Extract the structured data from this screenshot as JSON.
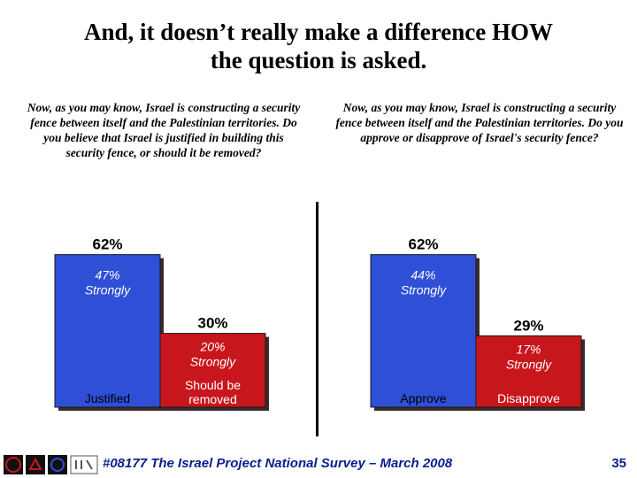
{
  "title": {
    "line1": "And, it doesn’t really make a difference HOW",
    "line2": "the question is asked."
  },
  "question_left": "Now, as you may know, Israel is constructing a security fence between itself and the Palestinian territories. Do you believe that Israel is justified in building this security fence, or should it be removed?",
  "question_right": "Now, as you may know, Israel is constructing a security fence between itself and the Palestinian territories. Do you approve or disapprove of Israel's security fence?",
  "footer": {
    "text": "#08177 The Israel Project National Survey – March 2008",
    "page_number": "35"
  },
  "colors": {
    "blue": "#2e4fd6",
    "red": "#c8161d",
    "footer": "#0b1f8a"
  },
  "chart_data": [
    {
      "type": "bar",
      "categories": [
        "Justified",
        "Should be removed"
      ],
      "values": [
        62,
        30
      ],
      "value_labels": [
        "62%",
        "30%"
      ],
      "strongly_values": [
        47,
        20
      ],
      "strongly_labels": [
        "47%",
        "20%"
      ],
      "strongly_word": "Strongly",
      "colors": [
        "#2e4fd6",
        "#c8161d"
      ]
    },
    {
      "type": "bar",
      "categories": [
        "Approve",
        "Disapprove"
      ],
      "values": [
        62,
        29
      ],
      "value_labels": [
        "62%",
        "29%"
      ],
      "strongly_values": [
        44,
        17
      ],
      "strongly_labels": [
        "44%",
        "17%"
      ],
      "strongly_word": "Strongly",
      "colors": [
        "#2e4fd6",
        "#c8161d"
      ]
    }
  ]
}
